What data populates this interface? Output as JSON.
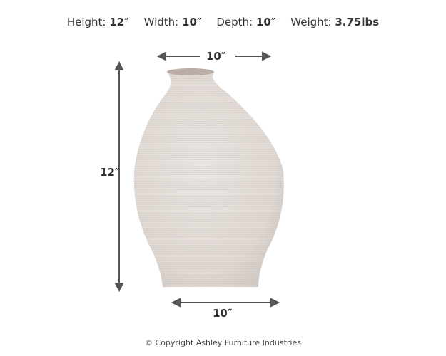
{
  "specs": [
    {
      "label": "Height:",
      "value": "12″"
    },
    {
      "label": "Width:",
      "value": "10″"
    },
    {
      "label": "Depth:",
      "value": "10″"
    },
    {
      "label": "Weight:",
      "value": "3.75lbs"
    }
  ],
  "dimensions": {
    "top_width": "10″",
    "height": "12″",
    "bottom_width": "10″"
  },
  "copyright": "© Copyright Ashley Furniture Industries",
  "colors": {
    "vase": "#e4deda",
    "arrow": "#555555"
  }
}
